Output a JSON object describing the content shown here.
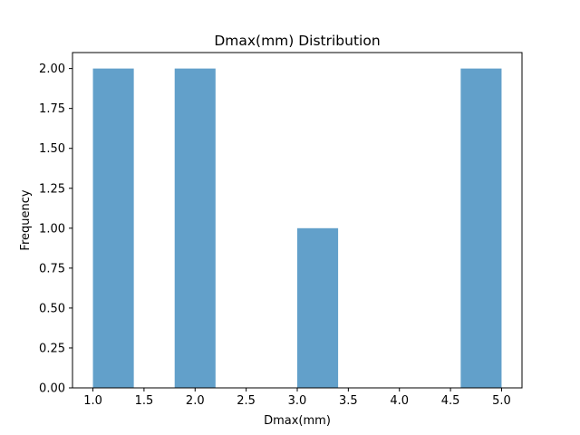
{
  "chart_data": {
    "type": "bar",
    "title": "Dmax(mm) Distribution",
    "xlabel": "Dmax(mm)",
    "ylabel": "Frequency",
    "xlim": [
      0.8,
      5.2
    ],
    "ylim": [
      0,
      2.1
    ],
    "xticks": [
      "1.0",
      "1.5",
      "2.0",
      "2.5",
      "3.0",
      "3.5",
      "4.0",
      "4.5",
      "5.0"
    ],
    "yticks": [
      "0.00",
      "0.25",
      "0.50",
      "0.75",
      "1.00",
      "1.25",
      "1.50",
      "1.75",
      "2.00"
    ],
    "bins": [
      {
        "x0": 1.0,
        "x1": 1.4,
        "count": 2
      },
      {
        "x0": 1.4,
        "x1": 1.8,
        "count": 0
      },
      {
        "x0": 1.8,
        "x1": 2.2,
        "count": 2
      },
      {
        "x0": 2.2,
        "x1": 2.6,
        "count": 0
      },
      {
        "x0": 2.6,
        "x1": 3.0,
        "count": 0
      },
      {
        "x0": 3.0,
        "x1": 3.4,
        "count": 1
      },
      {
        "x0": 3.4,
        "x1": 3.8,
        "count": 0
      },
      {
        "x0": 3.8,
        "x1": 4.2,
        "count": 0
      },
      {
        "x0": 4.2,
        "x1": 4.6,
        "count": 0
      },
      {
        "x0": 4.6,
        "x1": 5.0,
        "count": 2
      }
    ],
    "bar_color": "#1f77b4",
    "bar_opacity": 0.7,
    "grid": false,
    "legend": "none"
  }
}
